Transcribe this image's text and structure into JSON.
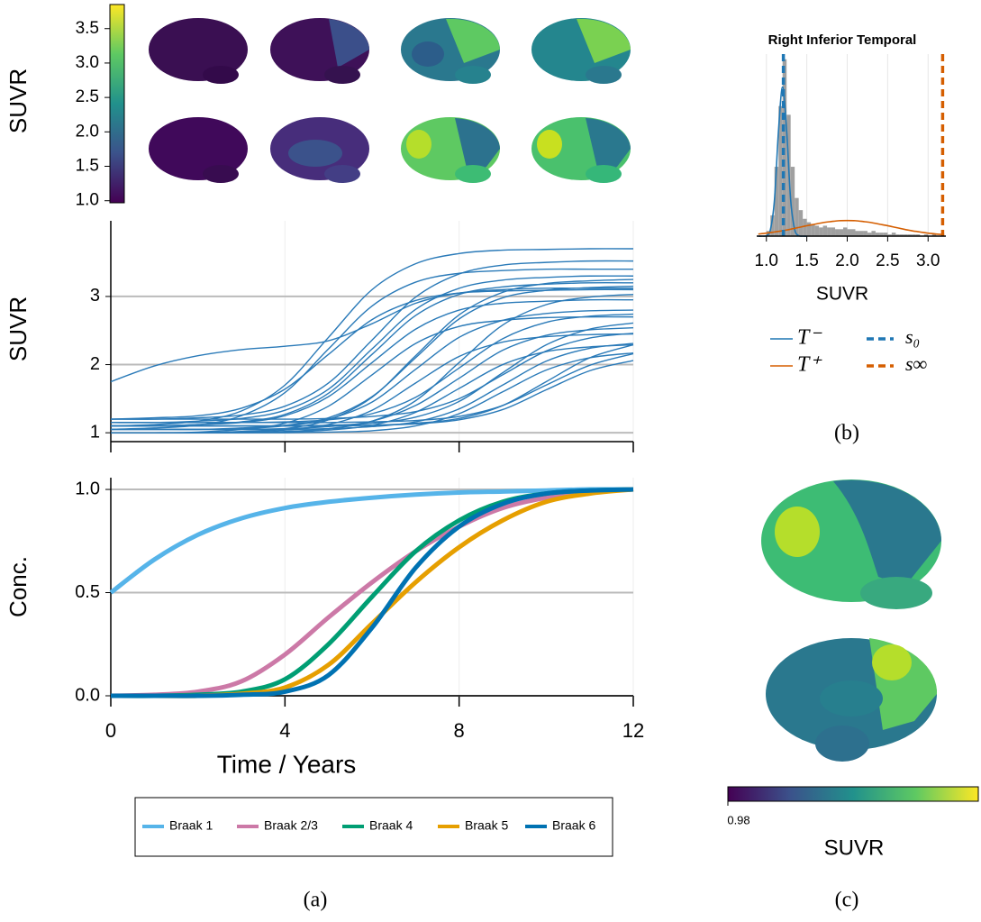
{
  "chart_data": [
    {
      "type": "colorbar",
      "ylabel": "SUVR",
      "ylim": [
        0.97,
        3.85
      ],
      "yticks": [
        {
          "value": 1,
          "label": "1.0"
        },
        1.5,
        {
          "value": 2,
          "label": "2.0"
        },
        2.5,
        {
          "value": 3,
          "label": "3.0"
        },
        3.5
      ]
    },
    {
      "type": "line",
      "ylabel": "SUVR",
      "color": "#2a7ab8",
      "xlim": [
        0,
        12
      ],
      "ylim": [
        0.87,
        4.11
      ],
      "yticks": [
        1,
        2,
        3
      ],
      "grid": true,
      "x": [
        0,
        1,
        2,
        3,
        4,
        5,
        6,
        7,
        8,
        9,
        10,
        11,
        12
      ],
      "series": [
        {
          "values": [
            1.1,
            1.12,
            1.17,
            1.32,
            1.7,
            2.4,
            3.1,
            3.48,
            3.63,
            3.68,
            3.69,
            3.7,
            3.7
          ]
        },
        {
          "values": [
            1.2,
            1.2,
            1.22,
            1.26,
            1.39,
            1.73,
            2.36,
            2.99,
            3.33,
            3.46,
            3.5,
            3.52,
            3.52
          ]
        },
        {
          "values": [
            1.05,
            1.07,
            1.11,
            1.25,
            1.59,
            2.23,
            2.86,
            3.21,
            3.34,
            3.38,
            3.4,
            3.4,
            3.4
          ]
        },
        {
          "values": [
            1.15,
            1.15,
            1.17,
            1.21,
            1.33,
            1.64,
            2.23,
            2.81,
            3.12,
            3.24,
            3.28,
            3.3,
            3.3
          ]
        },
        {
          "values": [
            1.0,
            1.0,
            1.0,
            1.02,
            1.06,
            1.19,
            1.52,
            2.13,
            2.73,
            3.06,
            3.19,
            3.23,
            3.25
          ]
        },
        {
          "values": [
            1.1,
            1.1,
            1.12,
            1.16,
            1.27,
            1.58,
            2.15,
            2.72,
            3.03,
            3.14,
            3.18,
            3.2,
            3.2
          ]
        },
        {
          "values": [
            1.05,
            1.05,
            1.05,
            1.07,
            1.11,
            1.22,
            1.53,
            2.1,
            2.67,
            2.98,
            3.09,
            3.13,
            3.15
          ]
        },
        {
          "values": [
            1.2,
            1.22,
            1.25,
            1.36,
            1.64,
            2.15,
            2.66,
            2.94,
            3.05,
            3.08,
            3.09,
            3.1,
            3.1
          ]
        },
        {
          "values": [
            1.0,
            1.0,
            1.0,
            1.0,
            1.02,
            1.06,
            1.17,
            1.47,
            2.03,
            2.58,
            2.88,
            2.99,
            3.03
          ]
        },
        {
          "values": [
            1.1,
            1.1,
            1.12,
            1.15,
            1.25,
            1.53,
            2.03,
            2.52,
            2.8,
            2.9,
            2.93,
            2.95,
            2.95
          ]
        },
        {
          "values": [
            1.05,
            1.05,
            1.05,
            1.06,
            1.1,
            1.2,
            1.45,
            1.93,
            2.4,
            2.65,
            2.75,
            2.79,
            2.8
          ]
        },
        {
          "values": [
            1.15,
            1.15,
            1.15,
            1.15,
            1.16,
            1.19,
            1.28,
            1.52,
            1.95,
            2.38,
            2.62,
            2.71,
            2.74
          ]
        },
        {
          "values": [
            1.0,
            1.0,
            1.01,
            1.05,
            1.14,
            1.39,
            1.85,
            2.31,
            2.56,
            2.65,
            2.69,
            2.7,
            2.7
          ]
        },
        {
          "values": [
            1.1,
            1.1,
            1.1,
            1.1,
            1.1,
            1.11,
            1.14,
            1.23,
            1.46,
            1.88,
            2.29,
            2.52,
            2.61
          ]
        },
        {
          "values": [
            1.05,
            1.05,
            1.05,
            1.05,
            1.06,
            1.09,
            1.17,
            1.4,
            1.8,
            2.21,
            2.43,
            2.51,
            2.54
          ]
        },
        {
          "values": [
            1.2,
            1.2,
            1.2,
            1.2,
            1.2,
            1.21,
            1.24,
            1.31,
            1.5,
            1.85,
            2.2,
            2.39,
            2.46
          ]
        },
        {
          "values": [
            1.0,
            1.0,
            1.0,
            1.01,
            1.04,
            1.12,
            1.33,
            1.73,
            2.12,
            2.33,
            2.41,
            2.44,
            2.45
          ]
        },
        {
          "values": [
            1.1,
            1.1,
            1.1,
            1.1,
            1.1,
            1.1,
            1.11,
            1.14,
            1.21,
            1.4,
            1.75,
            2.1,
            2.29
          ]
        },
        {
          "values": [
            1.05,
            1.05,
            1.05,
            1.05,
            1.05,
            1.06,
            1.09,
            1.16,
            1.35,
            1.7,
            2.05,
            2.24,
            2.31
          ]
        },
        {
          "values": [
            1.0,
            1.0,
            1.0,
            1.0,
            1.01,
            1.04,
            1.11,
            1.3,
            1.65,
            2.0,
            2.19,
            2.26,
            2.29
          ]
        },
        {
          "values": [
            1.15,
            1.15,
            1.15,
            1.15,
            1.15,
            1.15,
            1.16,
            1.18,
            1.24,
            1.4,
            1.7,
            1.99,
            2.16
          ]
        },
        {
          "values": [
            1.0,
            1.0,
            1.0,
            1.0,
            1.0,
            1.01,
            1.03,
            1.1,
            1.28,
            1.6,
            1.92,
            2.1,
            2.17
          ]
        },
        {
          "values": [
            1.1,
            1.1,
            1.1,
            1.1,
            1.1,
            1.1,
            1.11,
            1.13,
            1.19,
            1.34,
            1.63,
            1.91,
            2.06
          ]
        },
        {
          "values": [
            1.75,
            1.98,
            2.13,
            2.22,
            2.27,
            2.35,
            2.6,
            2.9,
            3.05,
            3.1,
            3.12,
            3.12,
            3.12
          ]
        }
      ]
    },
    {
      "type": "line",
      "xlabel": "Time / Years",
      "ylabel": "Conc.",
      "xlim": [
        0,
        12
      ],
      "ylim": [
        0,
        1.057
      ],
      "xticks": [
        0,
        4,
        8,
        12
      ],
      "yticks": [
        {
          "value": 0,
          "label": "0.0"
        },
        0.5,
        {
          "value": 1,
          "label": "1.0"
        }
      ],
      "grid": true,
      "x": [
        0,
        1,
        2,
        3,
        4,
        5,
        6,
        7,
        8,
        9,
        10,
        11,
        12
      ],
      "series": [
        {
          "name": "Braak 1",
          "color": "#56b4e9",
          "values": [
            0.5,
            0.66,
            0.78,
            0.86,
            0.91,
            0.94,
            0.96,
            0.975,
            0.985,
            0.99,
            0.995,
            1.0,
            1.0
          ]
        },
        {
          "name": "Braak 2/3",
          "color": "#cc79a7",
          "values": [
            0.0,
            0.005,
            0.02,
            0.07,
            0.2,
            0.38,
            0.55,
            0.7,
            0.82,
            0.91,
            0.96,
            0.99,
            1.0
          ]
        },
        {
          "name": "Braak 4",
          "color": "#009e73",
          "values": [
            0.0,
            0.0,
            0.005,
            0.02,
            0.08,
            0.25,
            0.48,
            0.7,
            0.85,
            0.94,
            0.98,
            0.995,
            1.0
          ]
        },
        {
          "name": "Braak 5",
          "color": "#e69f00",
          "values": [
            0.0,
            0.0,
            0.0,
            0.01,
            0.04,
            0.15,
            0.35,
            0.55,
            0.72,
            0.85,
            0.94,
            0.98,
            1.0
          ]
        },
        {
          "name": "Braak 6",
          "color": "#0072b2",
          "values": [
            0.0,
            0.0,
            0.0,
            0.005,
            0.02,
            0.1,
            0.33,
            0.62,
            0.82,
            0.93,
            0.98,
            0.995,
            1.0
          ]
        }
      ]
    },
    {
      "type": "histogram",
      "title": "Right Inferior Temporal",
      "xlabel": "SUVR",
      "color": "#a0a0a0",
      "xlim": [
        0.88,
        3.22
      ],
      "ylim": [
        0,
        105
      ],
      "xticks": [
        {
          "value": 1,
          "label": "1.0"
        },
        1.5,
        {
          "value": 2,
          "label": "2.0"
        },
        2.5,
        {
          "value": 3,
          "label": "3.0"
        }
      ],
      "bins": [
        0.95,
        1.0,
        1.05,
        1.1,
        1.15,
        1.2,
        1.25,
        1.3,
        1.35,
        1.4,
        1.45,
        1.5,
        1.55,
        1.6,
        1.65,
        1.7,
        1.75,
        1.8,
        1.85,
        1.9,
        1.95,
        2.0,
        2.05,
        2.1,
        2.15,
        2.2,
        2.25,
        2.3,
        2.35,
        2.4,
        2.45,
        2.5,
        2.55,
        2.6,
        2.65,
        2.7,
        2.75,
        2.8,
        2.85,
        2.9,
        2.95,
        3.0,
        3.05,
        3.1,
        3.15,
        3.2
      ],
      "counts": [
        0,
        3,
        12,
        40,
        75,
        102,
        70,
        40,
        22,
        15,
        10,
        8,
        7,
        6,
        5,
        6,
        5,
        5,
        4,
        4,
        5,
        4,
        4,
        3,
        3,
        3,
        2,
        3,
        2,
        2,
        2,
        1,
        2,
        1,
        1,
        1,
        1,
        1,
        1,
        0,
        1,
        0,
        1,
        0,
        0
      ],
      "series": [
        {
          "name": "T⁻",
          "color": "#1f77b4",
          "x": [
            0.9,
            0.95,
            1.0,
            1.05,
            1.1,
            1.15,
            1.2,
            1.25,
            1.3,
            1.35,
            1.4,
            1.45,
            1.5
          ],
          "values": [
            0,
            0,
            0.3,
            3.8,
            21,
            61,
            86,
            61,
            21,
            3.8,
            0.3,
            0,
            0
          ]
        },
        {
          "name": "T⁺",
          "color": "#d55e00",
          "x": [
            0.9,
            1.0,
            1.1,
            1.2,
            1.3,
            1.4,
            1.5,
            1.6,
            1.7,
            1.8,
            1.9,
            2.0,
            2.1,
            2.2,
            2.3,
            2.4,
            2.5,
            2.6,
            2.7,
            2.8,
            2.9,
            3.0,
            3.1,
            3.2
          ],
          "values": [
            1.2,
            1.7,
            2.4,
            3.1,
            4.0,
            5.0,
            6.0,
            6.9,
            7.8,
            8.4,
            8.9,
            9.0,
            8.9,
            8.4,
            7.8,
            6.9,
            6.0,
            5.0,
            4.0,
            3.1,
            2.4,
            1.7,
            1.2,
            0.8
          ]
        }
      ],
      "vlines": [
        {
          "name": "s₀",
          "color": "#1f77b4",
          "value": 1.21
        },
        {
          "name": "s∞",
          "color": "#d55e00",
          "value": 3.18
        }
      ]
    },
    {
      "type": "colorbar",
      "xlabel": "SUVR",
      "xlim": [
        0.98,
        3.7
      ],
      "xticks": [
        0.98
      ]
    }
  ],
  "panels": [
    "(a)",
    "(b)",
    "(c)"
  ]
}
